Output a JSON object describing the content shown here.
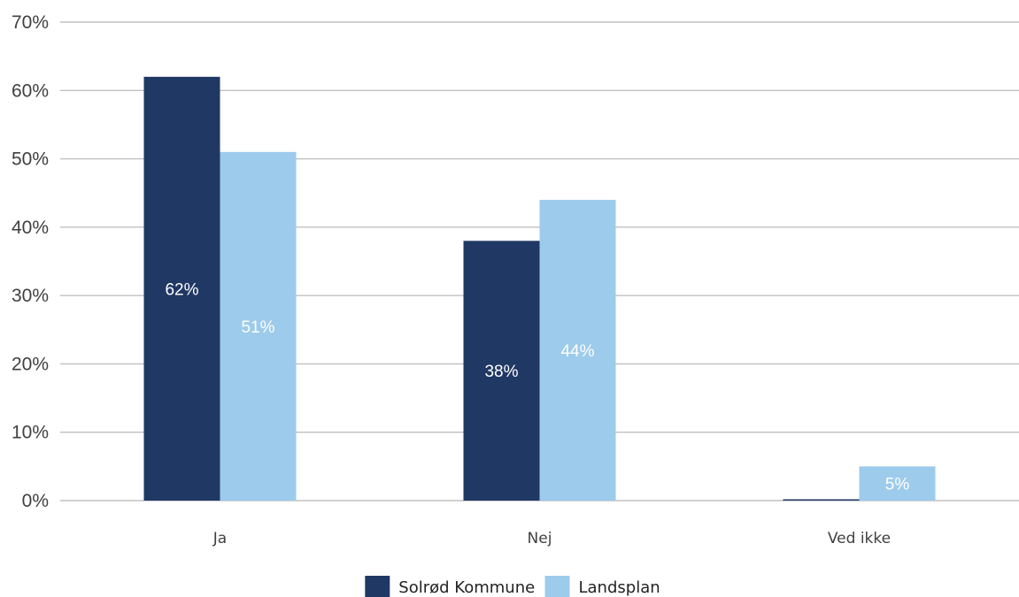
{
  "chart_data": {
    "type": "bar",
    "categories": [
      "Ja",
      "Nej",
      "Ved ikke"
    ],
    "series": [
      {
        "name": "Solrød Kommune",
        "values": [
          62,
          38,
          0
        ],
        "color": "#203864",
        "labels": [
          "62%",
          "38%",
          ""
        ]
      },
      {
        "name": "Landsplan",
        "values": [
          51,
          44,
          5
        ],
        "color": "#9dcbeb",
        "labels": [
          "51%",
          "44%",
          "5%"
        ]
      }
    ],
    "ylim": [
      0,
      70
    ],
    "yticks": [
      "0%",
      "10%",
      "20%",
      "30%",
      "40%",
      "50%",
      "60%",
      "70%"
    ],
    "title": "",
    "xlabel": "",
    "ylabel": "",
    "grid": true,
    "legend": "bottom-center",
    "gridline_color": "#c0c0c0"
  }
}
